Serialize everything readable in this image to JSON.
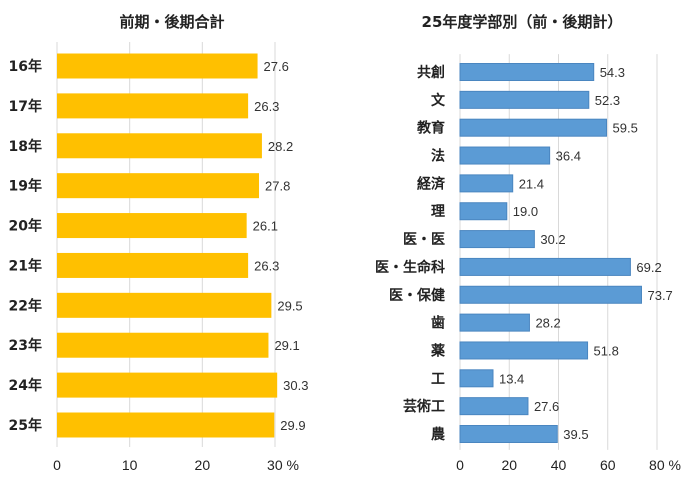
{
  "chart_data": [
    {
      "type": "bar",
      "orientation": "horizontal",
      "title": "前期・後期合計",
      "categories": [
        "16年",
        "17年",
        "18年",
        "19年",
        "20年",
        "21年",
        "22年",
        "23年",
        "24年",
        "25年"
      ],
      "values": [
        27.6,
        26.3,
        28.2,
        27.8,
        26.1,
        26.3,
        29.5,
        29.1,
        30.3,
        29.9
      ],
      "value_labels": [
        "27.6",
        "26.3",
        "28.2",
        "27.8",
        "26.1",
        "26.3",
        "29.5",
        "29.1",
        "30.3",
        "29.9"
      ],
      "xlim": [
        0,
        30
      ],
      "xticks": [
        "0",
        "10",
        "20",
        "30 %"
      ],
      "grid": true,
      "color": "#FFC000"
    },
    {
      "type": "bar",
      "orientation": "horizontal",
      "title": "25年度学部別（前・後期計）",
      "categories": [
        "共創",
        "文",
        "教育",
        "法",
        "経済",
        "理",
        "医・医",
        "医・生命科",
        "医・保健",
        "歯",
        "薬",
        "工",
        "芸術工",
        "農"
      ],
      "values": [
        54.3,
        52.3,
        59.5,
        36.4,
        21.4,
        19.0,
        30.2,
        69.2,
        73.7,
        28.2,
        51.8,
        13.4,
        27.6,
        39.5
      ],
      "value_labels": [
        "54.3",
        "52.3",
        "59.5",
        "36.4",
        "21.4",
        "19.0",
        "30.2",
        "69.2",
        "73.7",
        "28.2",
        "51.8",
        "13.4",
        "27.6",
        "39.5"
      ],
      "xlim": [
        0,
        80
      ],
      "xticks": [
        "0",
        "20",
        "40",
        "60",
        "80 %"
      ],
      "grid": true,
      "color": "#5B9BD5"
    }
  ]
}
